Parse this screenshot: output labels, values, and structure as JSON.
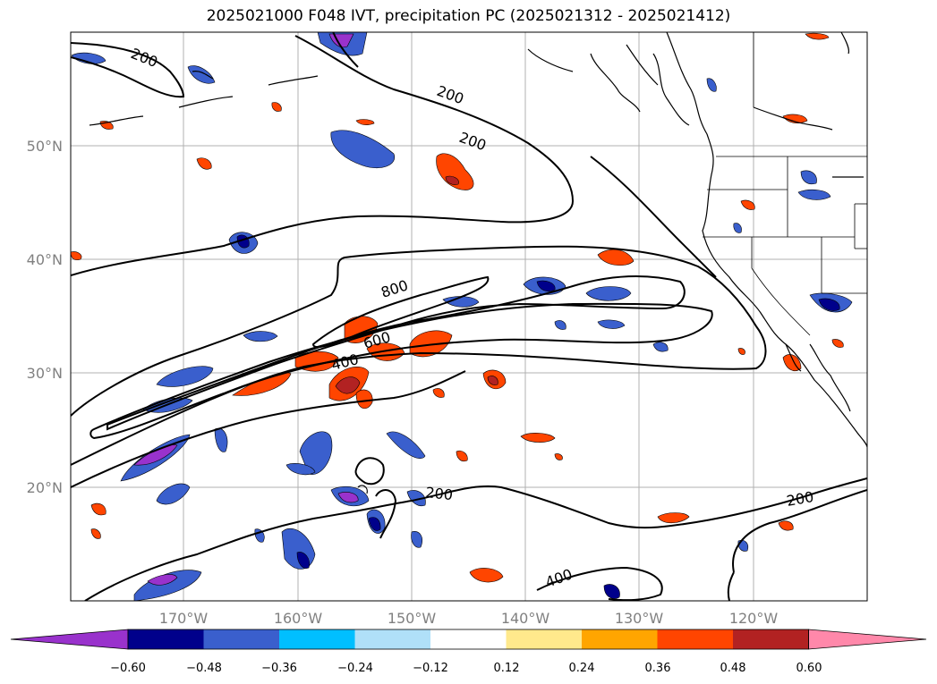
{
  "title": "2025021000 F048 IVT, precipitation PC (2025021312 - 2025021412)",
  "lat_labels": [
    "50°N",
    "40°N",
    "30°N",
    "20°N"
  ],
  "lon_labels": [
    "170°W",
    "160°W",
    "150°W",
    "140°W",
    "130°W",
    "120°W"
  ],
  "contour_labels": [
    "200",
    "200",
    "200",
    "800",
    "600",
    "400",
    "200",
    "200",
    "400"
  ],
  "colorbar": {
    "ticks": [
      "−0.60",
      "−0.48",
      "−0.36",
      "−0.24",
      "−0.12",
      "0.12",
      "0.24",
      "0.36",
      "0.48",
      "0.60"
    ],
    "colors": [
      "#9932cc",
      "#00008b",
      "#3a5fcd",
      "#00bfff",
      "#b0e0f8",
      "#ffffff",
      "#ffe98c",
      "#ffa500",
      "#ff4500",
      "#b22222",
      "#ff88aa"
    ]
  },
  "colors": {
    "negative_strong": "#00008b",
    "negative_mid": "#3a5fcd",
    "negative_light": "#00bfff",
    "positive_mid": "#ff4500",
    "positive_light": "#ffa500",
    "positive_strong": "#b22222"
  }
}
